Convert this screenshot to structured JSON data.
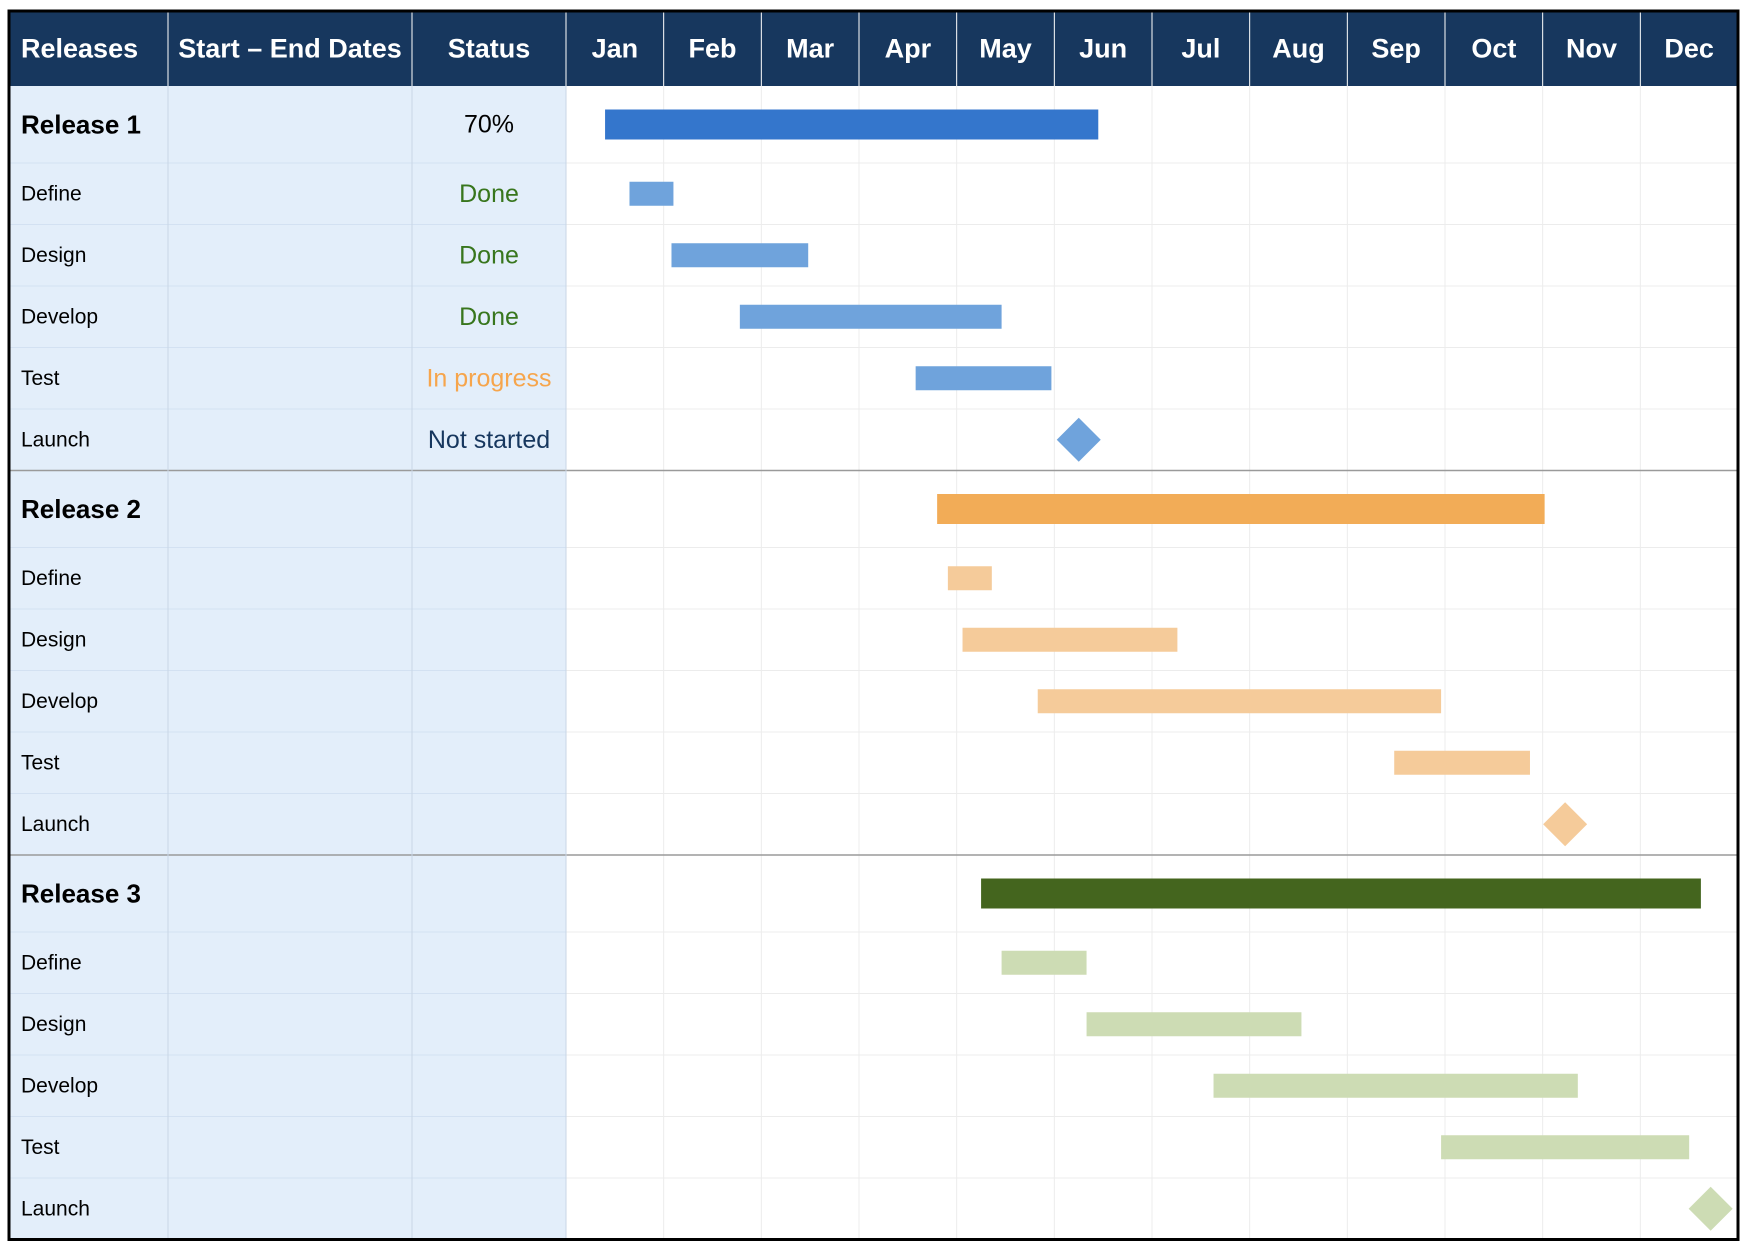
{
  "chart_data": {
    "type": "gantt",
    "title": "",
    "headers": {
      "releases": "Releases",
      "dates": "Start – End Dates",
      "status": "Status"
    },
    "months": [
      "Jan",
      "Feb",
      "Mar",
      "Apr",
      "May",
      "Jun",
      "Jul",
      "Aug",
      "Sep",
      "Oct",
      "Nov",
      "Dec"
    ],
    "xlim": [
      0,
      12
    ],
    "grid": true,
    "colors": {
      "header_bg": "#17375e",
      "header_text": "#ffffff",
      "left_bg": "#e3eefa",
      "done": "#38761d",
      "in_progress": "#f6a54c",
      "not_started": "#17375e"
    },
    "releases": [
      {
        "name": "Release 1",
        "status": "70%",
        "start": 0.4,
        "end": 5.45,
        "summary_color": "#3476cc",
        "task_color": "#6fa3dc",
        "tasks": [
          {
            "name": "Define",
            "status": "Done",
            "status_kind": "done",
            "start": 0.65,
            "end": 1.1
          },
          {
            "name": "Design",
            "status": "Done",
            "status_kind": "done",
            "start": 1.08,
            "end": 2.48
          },
          {
            "name": "Develop",
            "status": "Done",
            "status_kind": "done",
            "start": 1.78,
            "end": 4.46
          },
          {
            "name": "Test",
            "status": "In progress",
            "status_kind": "in_progress",
            "start": 3.58,
            "end": 4.97
          },
          {
            "name": "Launch",
            "status": "Not started",
            "status_kind": "not_started",
            "milestone": 5.25
          }
        ]
      },
      {
        "name": "Release 2",
        "status": "",
        "start": 3.8,
        "end": 10.02,
        "summary_color": "#f2ac57",
        "task_color": "#f5cb9a",
        "tasks": [
          {
            "name": "Define",
            "status": "",
            "start": 3.91,
            "end": 4.36
          },
          {
            "name": "Design",
            "status": "",
            "start": 4.06,
            "end": 6.26
          },
          {
            "name": "Develop",
            "status": "",
            "start": 4.83,
            "end": 8.96
          },
          {
            "name": "Test",
            "status": "",
            "start": 8.48,
            "end": 9.87
          },
          {
            "name": "Launch",
            "status": "",
            "milestone": 10.23
          }
        ]
      },
      {
        "name": "Release 3",
        "status": "",
        "start": 4.25,
        "end": 11.62,
        "summary_color": "#44651e",
        "task_color": "#cddcb4",
        "tasks": [
          {
            "name": "Define",
            "status": "",
            "start": 4.46,
            "end": 5.33
          },
          {
            "name": "Design",
            "status": "",
            "start": 5.33,
            "end": 7.53
          },
          {
            "name": "Develop",
            "status": "",
            "start": 6.63,
            "end": 10.36
          },
          {
            "name": "Test",
            "status": "",
            "start": 8.96,
            "end": 11.5
          },
          {
            "name": "Launch",
            "status": "",
            "milestone": 11.72
          }
        ]
      }
    ]
  }
}
